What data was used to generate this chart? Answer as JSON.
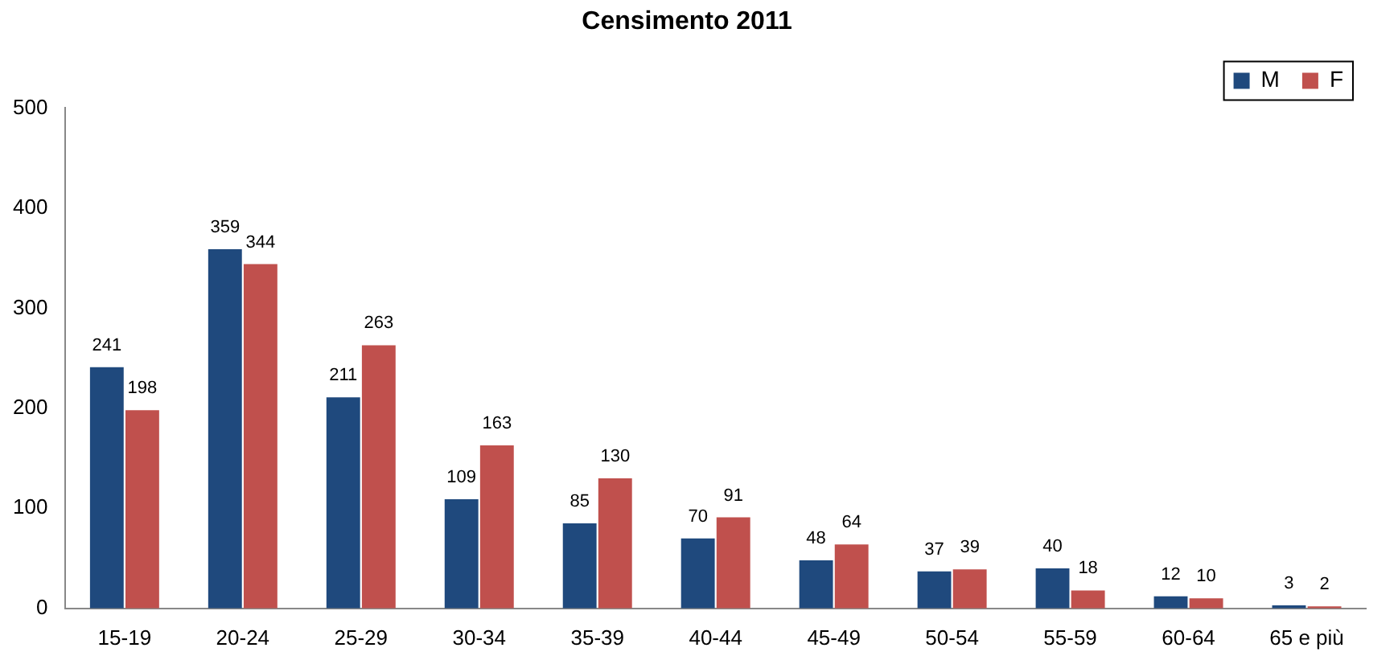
{
  "chart_data": {
    "type": "bar",
    "title": "Censimento 2011",
    "categories": [
      "15-19",
      "20-24",
      "25-29",
      "30-34",
      "35-39",
      "40-44",
      "45-49",
      "50-54",
      "55-59",
      "60-64",
      "65 e più"
    ],
    "series": [
      {
        "name": "M",
        "color": "#1f497d",
        "values": [
          241,
          359,
          211,
          109,
          85,
          70,
          48,
          37,
          40,
          12,
          3
        ]
      },
      {
        "name": "F",
        "color": "#c0504d",
        "values": [
          198,
          344,
          263,
          163,
          130,
          91,
          64,
          39,
          18,
          10,
          2
        ]
      }
    ],
    "ylim": [
      0,
      500
    ],
    "yticks": [
      0,
      100,
      200,
      300,
      400,
      500
    ],
    "grid": false,
    "legend": "top right",
    "data_labels": true
  }
}
